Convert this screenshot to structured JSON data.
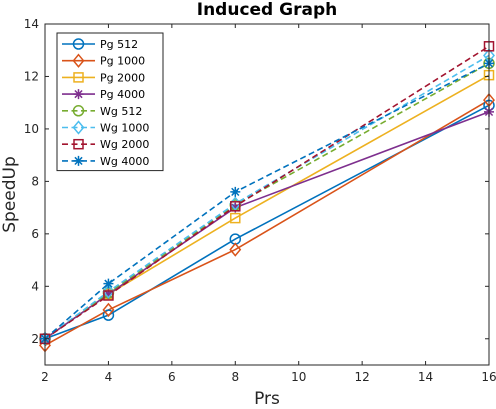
{
  "chart_data": {
    "type": "line",
    "title": "Induced Graph",
    "xlabel": "Prs",
    "ylabel": "SpeedUp",
    "xlim": [
      2,
      16
    ],
    "ylim": [
      1,
      14
    ],
    "xticks": [
      2,
      4,
      6,
      8,
      10,
      12,
      14,
      16
    ],
    "yticks": [
      2,
      4,
      6,
      8,
      10,
      12,
      14
    ],
    "grid": false,
    "legend_position": "top-left",
    "x": [
      2,
      4,
      8,
      16
    ],
    "series": [
      {
        "name": "Pg 512",
        "values": [
          2.0,
          2.9,
          5.8,
          10.9
        ],
        "color": "#0072BD",
        "marker": "circle",
        "dash": "solid"
      },
      {
        "name": "Pg 1000",
        "values": [
          1.75,
          3.1,
          5.4,
          11.1
        ],
        "color": "#D95319",
        "marker": "diamond",
        "dash": "solid"
      },
      {
        "name": "Pg 2000",
        "values": [
          2.0,
          3.7,
          6.6,
          12.05
        ],
        "color": "#EDB120",
        "marker": "square",
        "dash": "solid"
      },
      {
        "name": "Pg 4000",
        "values": [
          2.0,
          3.7,
          7.0,
          10.65
        ],
        "color": "#7E2F8E",
        "marker": "asterisk",
        "dash": "solid"
      },
      {
        "name": "Wg 512",
        "values": [
          2.0,
          3.75,
          7.1,
          12.5
        ],
        "color": "#77AC30",
        "marker": "circle",
        "dash": "dashed"
      },
      {
        "name": "Wg 1000",
        "values": [
          2.0,
          3.8,
          7.15,
          12.8
        ],
        "color": "#4DBEEE",
        "marker": "diamond",
        "dash": "dashed"
      },
      {
        "name": "Wg 2000",
        "values": [
          2.0,
          3.65,
          7.05,
          13.15
        ],
        "color": "#A2142F",
        "marker": "square",
        "dash": "dashed"
      },
      {
        "name": "Wg 4000",
        "values": [
          2.0,
          4.1,
          7.6,
          12.5
        ],
        "color": "#0072BD",
        "marker": "asterisk",
        "dash": "dashed"
      }
    ]
  }
}
